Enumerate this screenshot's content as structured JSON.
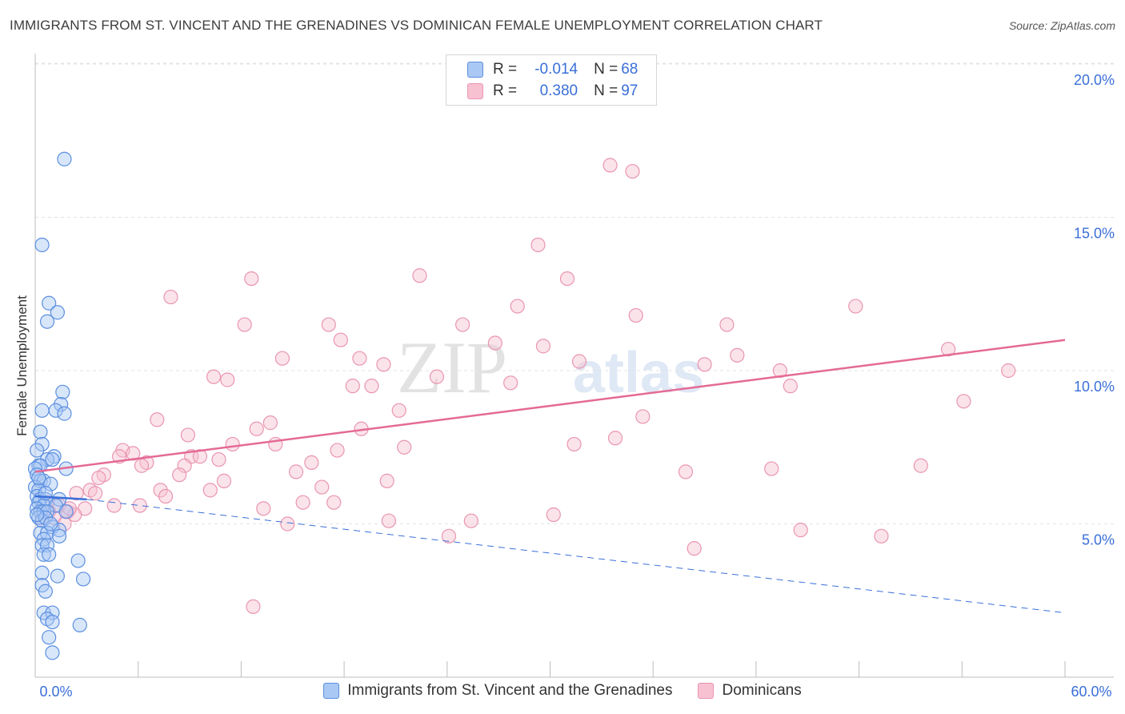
{
  "title": "IMMIGRANTS FROM ST. VINCENT AND THE GRENADINES VS DOMINICAN FEMALE UNEMPLOYMENT CORRELATION CHART",
  "source": "Source: ZipAtlas.com",
  "watermark": {
    "zip": "ZIP",
    "atlas": "atlas"
  },
  "colors": {
    "blue_fill": "#a9c8f3",
    "blue_stroke": "#5b8fe0",
    "blue_line": "#3a6fd8",
    "pink_fill": "#f7c1d1",
    "pink_stroke": "#e995b1",
    "pink_line": "#e46a95",
    "accent_text": "#3a6fd8",
    "grid": "#e3e3e3"
  },
  "legend": {
    "rows": [
      {
        "series": "blue",
        "r_label": "R =",
        "r_value": "-0.014",
        "n_label": "N =",
        "n_value": "68"
      },
      {
        "series": "pink",
        "r_label": "R =",
        "r_value": "0.380",
        "n_label": "N =",
        "n_value": "97"
      }
    ]
  },
  "chart_data": {
    "type": "scatter",
    "xlabel": "",
    "ylabel": "Female Unemployment",
    "xlim": [
      0,
      60
    ],
    "ylim": [
      0,
      20
    ],
    "x_ticks": [
      0,
      6,
      12,
      18,
      24,
      30,
      36,
      42,
      48,
      54,
      60
    ],
    "x_tick_labels": {
      "start": "0.0%",
      "end": "60.0%"
    },
    "y_ticks": [
      5,
      10,
      15,
      20
    ],
    "y_tick_labels": [
      "5.0%",
      "10.0%",
      "15.0%",
      "20.0%"
    ],
    "grid": "horizontal dashed",
    "series": [
      {
        "name": "Immigrants from St. Vincent and the Grenadines",
        "color": "blue",
        "r": -0.014,
        "n": 68,
        "trend": {
          "solid": [
            [
              0,
              5.9
            ],
            [
              3,
              5.8
            ]
          ],
          "dashed": [
            [
              3,
              5.8
            ],
            [
              60,
              2.1
            ]
          ]
        },
        "points": [
          [
            1.7,
            16.9
          ],
          [
            0.4,
            14.1
          ],
          [
            0.8,
            12.2
          ],
          [
            1.3,
            11.9
          ],
          [
            0.7,
            11.6
          ],
          [
            1.6,
            9.3
          ],
          [
            1.5,
            8.9
          ],
          [
            1.2,
            8.7
          ],
          [
            1.7,
            8.6
          ],
          [
            0.4,
            8.7
          ],
          [
            0.3,
            8.0
          ],
          [
            0.4,
            7.6
          ],
          [
            0.1,
            7.4
          ],
          [
            1.1,
            7.2
          ],
          [
            0.7,
            7.1
          ],
          [
            1.0,
            7.1
          ],
          [
            0.2,
            6.9
          ],
          [
            0.3,
            6.9
          ],
          [
            0.0,
            6.8
          ],
          [
            1.8,
            6.8
          ],
          [
            0.1,
            6.6
          ],
          [
            0.3,
            6.4
          ],
          [
            0.5,
            6.4
          ],
          [
            0.0,
            6.2
          ],
          [
            0.9,
            6.3
          ],
          [
            0.2,
            6.1
          ],
          [
            0.1,
            5.9
          ],
          [
            0.3,
            5.8
          ],
          [
            0.6,
            5.8
          ],
          [
            1.4,
            5.8
          ],
          [
            0.2,
            5.7
          ],
          [
            0.5,
            5.6
          ],
          [
            1.2,
            5.6
          ],
          [
            0.1,
            5.5
          ],
          [
            0.3,
            5.4
          ],
          [
            0.5,
            5.4
          ],
          [
            0.7,
            5.4
          ],
          [
            1.8,
            5.4
          ],
          [
            0.2,
            5.2
          ],
          [
            0.4,
            5.1
          ],
          [
            0.6,
            5.2
          ],
          [
            1.0,
            4.9
          ],
          [
            1.4,
            4.8
          ],
          [
            0.3,
            4.7
          ],
          [
            0.7,
            4.7
          ],
          [
            1.4,
            4.6
          ],
          [
            0.5,
            4.5
          ],
          [
            0.4,
            4.3
          ],
          [
            0.7,
            4.3
          ],
          [
            0.5,
            4.0
          ],
          [
            0.8,
            4.0
          ],
          [
            2.5,
            3.8
          ],
          [
            0.4,
            3.4
          ],
          [
            1.3,
            3.3
          ],
          [
            2.8,
            3.2
          ],
          [
            0.4,
            3.0
          ],
          [
            0.6,
            2.8
          ],
          [
            0.5,
            2.1
          ],
          [
            1.0,
            2.1
          ],
          [
            0.7,
            1.9
          ],
          [
            1.0,
            1.8
          ],
          [
            2.6,
            1.7
          ],
          [
            0.8,
            1.3
          ],
          [
            1.0,
            0.8
          ],
          [
            0.2,
            6.5
          ],
          [
            0.6,
            6.0
          ],
          [
            0.1,
            5.3
          ],
          [
            0.9,
            5.0
          ]
        ]
      },
      {
        "name": "Dominicans",
        "color": "pink",
        "r": 0.38,
        "n": 97,
        "trend": {
          "solid": [
            [
              0,
              6.7
            ],
            [
              60,
              11.0
            ]
          ]
        },
        "points": [
          [
            33.5,
            16.7
          ],
          [
            34.8,
            16.5
          ],
          [
            29.3,
            14.1
          ],
          [
            22.4,
            13.1
          ],
          [
            31.0,
            13.0
          ],
          [
            12.6,
            13.0
          ],
          [
            7.9,
            12.4
          ],
          [
            28.1,
            12.1
          ],
          [
            47.8,
            12.1
          ],
          [
            35.0,
            11.8
          ],
          [
            12.2,
            11.5
          ],
          [
            17.1,
            11.5
          ],
          [
            24.9,
            11.5
          ],
          [
            40.3,
            11.5
          ],
          [
            17.8,
            11.0
          ],
          [
            26.8,
            10.9
          ],
          [
            29.6,
            10.8
          ],
          [
            53.2,
            10.7
          ],
          [
            14.4,
            10.4
          ],
          [
            18.9,
            10.4
          ],
          [
            40.9,
            10.5
          ],
          [
            31.7,
            10.3
          ],
          [
            20.3,
            10.2
          ],
          [
            39.0,
            10.2
          ],
          [
            43.4,
            10.0
          ],
          [
            56.7,
            10.0
          ],
          [
            10.4,
            9.8
          ],
          [
            11.2,
            9.7
          ],
          [
            23.4,
            9.8
          ],
          [
            27.7,
            9.6
          ],
          [
            18.5,
            9.5
          ],
          [
            19.6,
            9.5
          ],
          [
            44.0,
            9.5
          ],
          [
            54.1,
            9.0
          ],
          [
            21.2,
            8.7
          ],
          [
            35.4,
            8.5
          ],
          [
            7.1,
            8.4
          ],
          [
            13.7,
            8.3
          ],
          [
            12.9,
            8.1
          ],
          [
            19.0,
            8.1
          ],
          [
            8.9,
            7.9
          ],
          [
            11.5,
            7.6
          ],
          [
            14.0,
            7.6
          ],
          [
            21.5,
            7.5
          ],
          [
            31.4,
            7.6
          ],
          [
            33.8,
            7.8
          ],
          [
            5.1,
            7.4
          ],
          [
            5.7,
            7.3
          ],
          [
            17.6,
            7.4
          ],
          [
            4.9,
            7.2
          ],
          [
            9.1,
            7.2
          ],
          [
            9.6,
            7.2
          ],
          [
            10.7,
            7.1
          ],
          [
            6.5,
            7.0
          ],
          [
            16.1,
            7.0
          ],
          [
            6.2,
            6.9
          ],
          [
            8.7,
            6.9
          ],
          [
            15.2,
            6.7
          ],
          [
            37.9,
            6.7
          ],
          [
            42.9,
            6.8
          ],
          [
            51.6,
            6.9
          ],
          [
            4.0,
            6.6
          ],
          [
            8.4,
            6.6
          ],
          [
            3.7,
            6.5
          ],
          [
            11.0,
            6.4
          ],
          [
            20.5,
            6.4
          ],
          [
            3.2,
            6.1
          ],
          [
            7.3,
            6.1
          ],
          [
            10.2,
            6.1
          ],
          [
            16.7,
            6.2
          ],
          [
            2.4,
            6.0
          ],
          [
            3.5,
            6.0
          ],
          [
            7.6,
            5.9
          ],
          [
            15.6,
            5.7
          ],
          [
            17.4,
            5.7
          ],
          [
            6.1,
            5.6
          ],
          [
            1.4,
            5.6
          ],
          [
            4.6,
            5.6
          ],
          [
            2.9,
            5.5
          ],
          [
            13.3,
            5.5
          ],
          [
            0.8,
            5.4
          ],
          [
            1.9,
            5.4
          ],
          [
            2.3,
            5.3
          ],
          [
            30.2,
            5.3
          ],
          [
            0.4,
            5.2
          ],
          [
            1.1,
            5.2
          ],
          [
            20.6,
            5.1
          ],
          [
            25.4,
            5.1
          ],
          [
            14.7,
            5.0
          ],
          [
            1.7,
            5.0
          ],
          [
            44.6,
            4.8
          ],
          [
            24.1,
            4.6
          ],
          [
            49.3,
            4.6
          ],
          [
            38.4,
            4.2
          ],
          [
            12.7,
            2.3
          ],
          [
            0.7,
            5.7
          ],
          [
            2.0,
            5.5
          ]
        ]
      }
    ]
  },
  "bottom_legend": [
    {
      "series": "blue",
      "label": "Immigrants from St. Vincent and the Grenadines"
    },
    {
      "series": "pink",
      "label": "Dominicans"
    }
  ]
}
